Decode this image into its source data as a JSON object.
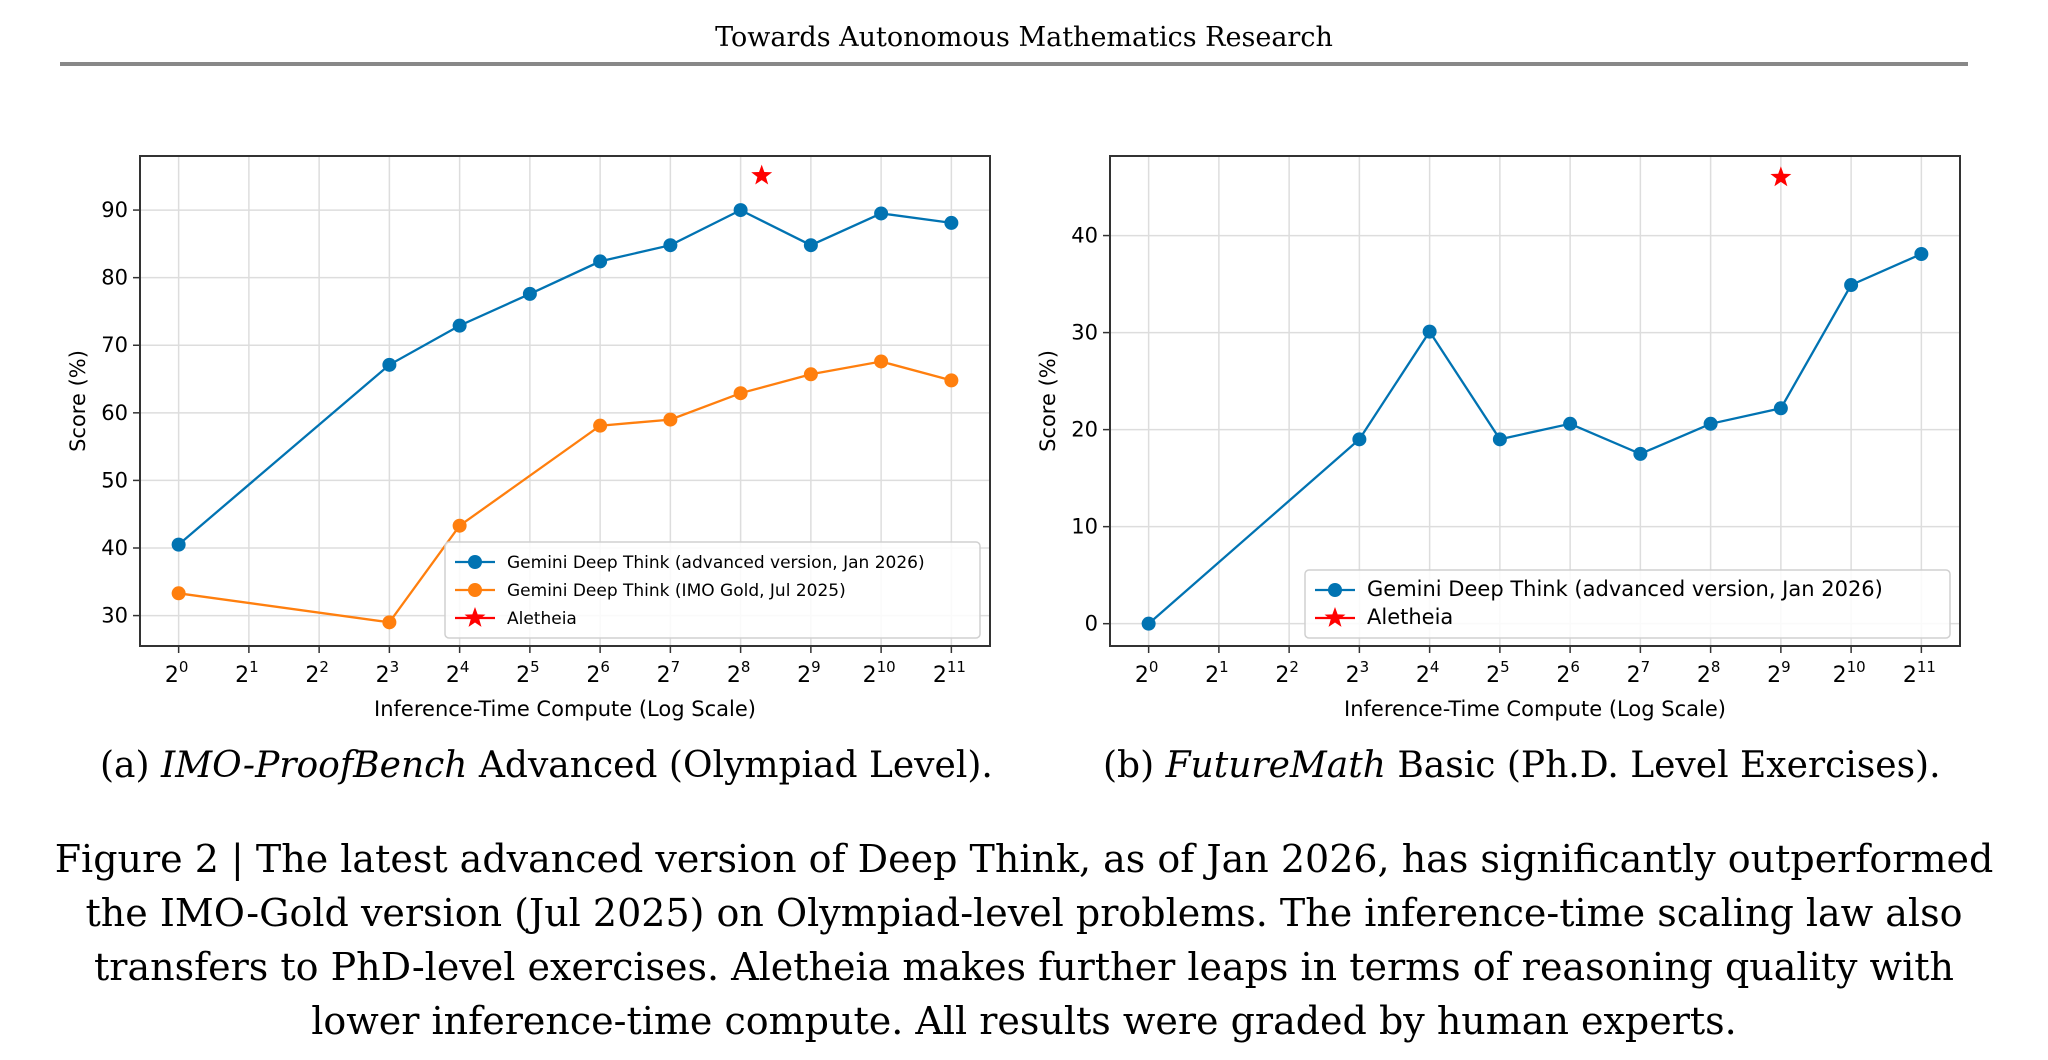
{
  "header": {
    "running_title": "Towards Autonomous Mathematics Research"
  },
  "colors": {
    "series_new": "#0173b2",
    "series_old": "#ff7f0e",
    "star": "#ff0000",
    "grid": "#dddddd",
    "axis": "#333333"
  },
  "subcaptions": {
    "a": {
      "prefix": "(a) ",
      "italic": "IMO-ProofBench",
      "rest": " Advanced (Olympiad Level)."
    },
    "b": {
      "prefix": "(b) ",
      "italic": "FutureMath",
      "rest": " Basic (Ph.D. Level Exercises)."
    }
  },
  "caption": "Figure 2 | The latest advanced version of Deep Think, as of Jan 2026, has significantly outperformed the IMO-Gold version (Jul 2025) on Olympiad-level problems. The inference-time scaling law also transfers to PhD-level exercises. Aletheia makes further leaps in terms of reasoning quality with lower inference-time compute. All results were graded by human experts.",
  "chart_data": [
    {
      "type": "line",
      "id": "a",
      "title": "",
      "xlabel": "Inference-Time Compute (Log Scale)",
      "ylabel": "Score (%)",
      "x_exponents": [
        0,
        1,
        2,
        3,
        4,
        5,
        6,
        7,
        8,
        9,
        10,
        11
      ],
      "x_tick_labels": [
        "2^0",
        "2^1",
        "2^2",
        "2^3",
        "2^4",
        "2^5",
        "2^6",
        "2^7",
        "2^8",
        "2^9",
        "2^10",
        "2^11"
      ],
      "xlim_exponent": [
        -0.55,
        11.55
      ],
      "ylim": [
        25.5,
        98
      ],
      "yticks": [
        30,
        40,
        50,
        60,
        70,
        80,
        90
      ],
      "grid": true,
      "legend_position": "lower-right",
      "series": [
        {
          "name": "Gemini Deep Think (advanced version, Jan 2026)",
          "color_key": "series_new",
          "marker": "circle",
          "x_exponent": [
            0,
            3,
            4,
            5,
            6,
            7,
            8,
            9,
            10,
            11
          ],
          "values": [
            40.5,
            67.1,
            72.9,
            77.6,
            82.4,
            84.8,
            90.0,
            84.8,
            89.5,
            88.1
          ]
        },
        {
          "name": "Gemini Deep Think (IMO Gold, Jul 2025)",
          "color_key": "series_old",
          "marker": "circle",
          "x_exponent": [
            0,
            3,
            4,
            6,
            7,
            8,
            9,
            10,
            11
          ],
          "values": [
            33.3,
            29.0,
            43.3,
            58.1,
            59.0,
            62.9,
            65.7,
            67.6,
            64.8
          ]
        },
        {
          "name": "Aletheia",
          "color_key": "star",
          "marker": "star",
          "x_exponent": [
            8.3
          ],
          "values": [
            95.1
          ]
        }
      ]
    },
    {
      "type": "line",
      "id": "b",
      "title": "",
      "xlabel": "Inference-Time Compute (Log Scale)",
      "ylabel": "Score (%)",
      "x_exponents": [
        0,
        1,
        2,
        3,
        4,
        5,
        6,
        7,
        8,
        9,
        10,
        11
      ],
      "x_tick_labels": [
        "2^0",
        "2^1",
        "2^2",
        "2^3",
        "2^4",
        "2^5",
        "2^6",
        "2^7",
        "2^8",
        "2^9",
        "2^10",
        "2^11"
      ],
      "xlim_exponent": [
        -0.55,
        11.55
      ],
      "ylim": [
        -2.3,
        48.2
      ],
      "yticks": [
        0,
        10,
        20,
        30,
        40
      ],
      "grid": true,
      "legend_position": "lower-right",
      "series": [
        {
          "name": "Gemini Deep Think (advanced version, Jan 2026)",
          "color_key": "series_new",
          "marker": "circle",
          "x_exponent": [
            0,
            3,
            4,
            5,
            6,
            7,
            8,
            9,
            10,
            11
          ],
          "values": [
            0.0,
            19.0,
            30.1,
            19.0,
            20.6,
            17.5,
            20.6,
            22.2,
            34.9,
            38.1
          ]
        },
        {
          "name": "Aletheia",
          "color_key": "star",
          "marker": "star",
          "x_exponent": [
            9
          ],
          "values": [
            46.0
          ]
        }
      ]
    }
  ]
}
